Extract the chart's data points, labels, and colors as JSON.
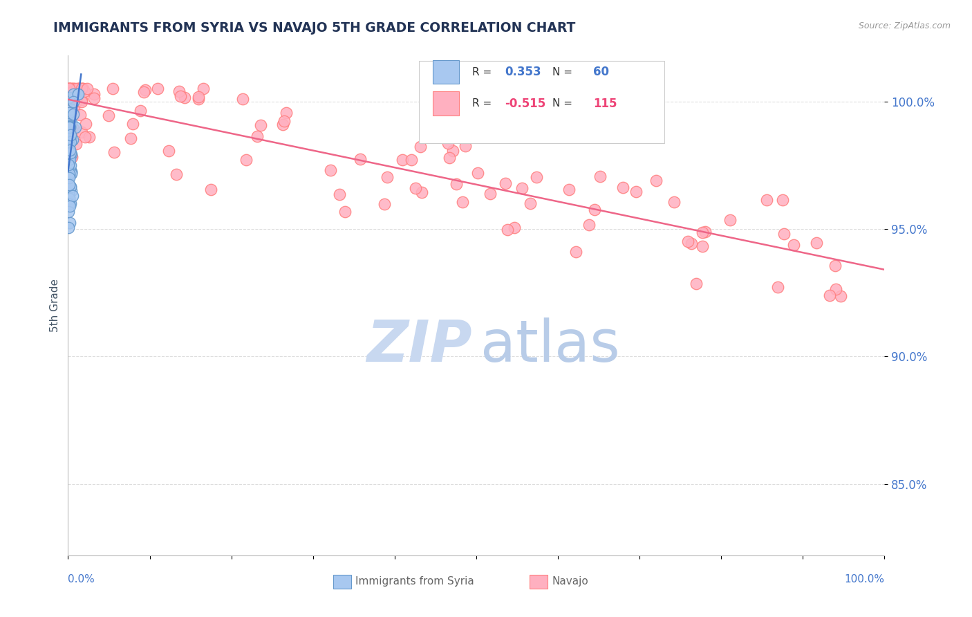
{
  "title": "IMMIGRANTS FROM SYRIA VS NAVAJO 5TH GRADE CORRELATION CHART",
  "source": "Source: ZipAtlas.com",
  "ylabel": "5th Grade",
  "yticks": [
    0.85,
    0.9,
    0.95,
    1.0
  ],
  "ytick_labels": [
    "85.0%",
    "90.0%",
    "95.0%",
    "100.0%"
  ],
  "xlim": [
    0.0,
    1.0
  ],
  "ylim": [
    0.822,
    1.018
  ],
  "legend_R1": "0.353",
  "legend_N1": "60",
  "legend_R2": "-0.515",
  "legend_N2": "115",
  "series1_color": "#A8C8F0",
  "series1_edge": "#6699CC",
  "series2_color": "#FFB0C0",
  "series2_edge": "#FF8080",
  "trendline1_color": "#4477CC",
  "trendline2_color": "#EE6688",
  "watermark_zip_color": "#C8D8F0",
  "watermark_atlas_color": "#B8CCE8",
  "background_color": "#FFFFFF",
  "grid_color": "#DDDDDD",
  "title_color": "#223355",
  "ylabel_color": "#445566",
  "ytick_color": "#4477CC",
  "xtick_label_color": "#4477CC",
  "legend_text_color": "#333333",
  "legend_R1_color": "#4477CC",
  "legend_R2_color": "#EE4477",
  "legend_N1_color": "#4477CC",
  "legend_N2_color": "#EE4477",
  "bottom_legend_color": "#666666"
}
